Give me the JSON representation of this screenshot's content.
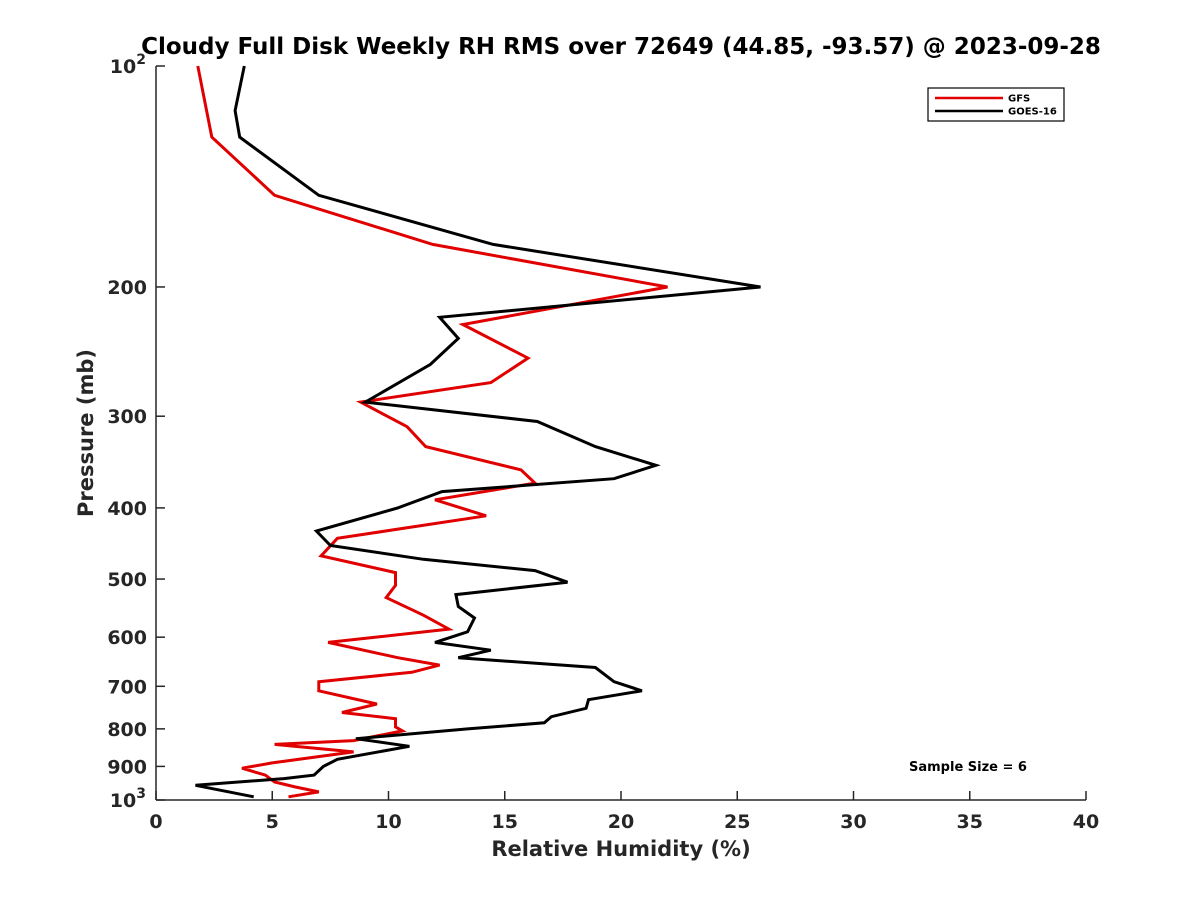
{
  "chart_data": {
    "type": "line",
    "title": "Cloudy Full Disk Weekly RH RMS over 72649 (44.85, -93.57) @ 2023-09-28",
    "xlabel": "Relative Humidity (%)",
    "ylabel": "Pressure (mb)",
    "xlim": [
      0,
      40
    ],
    "ylim": [
      100,
      1000
    ],
    "y_scale": "log",
    "y_reversed": true,
    "grid": false,
    "legend_position": "top-right",
    "x_ticks": [
      0,
      5,
      10,
      15,
      20,
      25,
      30,
      35,
      40
    ],
    "x_tick_labels": [
      "0",
      "5",
      "10",
      "15",
      "20",
      "25",
      "30",
      "35",
      "40"
    ],
    "y_ticks": [
      100,
      200,
      300,
      400,
      500,
      600,
      700,
      800,
      900,
      1000
    ],
    "y_tick_labels": [
      {
        "base": "10",
        "sup": "2"
      },
      {
        "base": "200",
        "sup": ""
      },
      {
        "base": "300",
        "sup": ""
      },
      {
        "base": "400",
        "sup": ""
      },
      {
        "base": "500",
        "sup": ""
      },
      {
        "base": "600",
        "sup": ""
      },
      {
        "base": "700",
        "sup": ""
      },
      {
        "base": "800",
        "sup": ""
      },
      {
        "base": "900",
        "sup": ""
      },
      {
        "base": "10",
        "sup": "3"
      }
    ],
    "annotation": "Sample Size = 6",
    "series": [
      {
        "name": "GFS",
        "color": "#e00000",
        "points": [
          [
            1.8,
            100
          ],
          [
            2.4,
            125
          ],
          [
            5.1,
            150
          ],
          [
            11.9,
            175
          ],
          [
            22.0,
            200
          ],
          [
            13.2,
            225
          ],
          [
            16.0,
            250
          ],
          [
            14.4,
            270
          ],
          [
            8.8,
            287
          ],
          [
            10.8,
            310
          ],
          [
            11.6,
            330
          ],
          [
            15.7,
            355
          ],
          [
            16.3,
            370
          ],
          [
            12.0,
            390
          ],
          [
            14.2,
            410
          ],
          [
            7.8,
            440
          ],
          [
            7.1,
            465
          ],
          [
            10.3,
            490
          ],
          [
            10.3,
            510
          ],
          [
            9.9,
            530
          ],
          [
            11.5,
            560
          ],
          [
            12.6,
            585
          ],
          [
            7.4,
            610
          ],
          [
            10.4,
            640
          ],
          [
            12.2,
            655
          ],
          [
            11.0,
            670
          ],
          [
            7.0,
            690
          ],
          [
            7.0,
            710
          ],
          [
            9.5,
            740
          ],
          [
            8.0,
            760
          ],
          [
            10.3,
            775
          ],
          [
            10.3,
            795
          ],
          [
            10.6,
            805
          ],
          [
            8.5,
            830
          ],
          [
            5.1,
            840
          ],
          [
            8.5,
            860
          ],
          [
            5.0,
            890
          ],
          [
            3.7,
            905
          ],
          [
            4.7,
            925
          ],
          [
            5.1,
            945
          ],
          [
            6.0,
            960
          ],
          [
            7.0,
            975
          ],
          [
            5.7,
            990
          ]
        ]
      },
      {
        "name": "GOES-16",
        "color": "#000000",
        "points": [
          [
            3.8,
            100
          ],
          [
            3.4,
            115
          ],
          [
            3.6,
            125
          ],
          [
            7.0,
            150
          ],
          [
            14.5,
            175
          ],
          [
            26.0,
            200
          ],
          [
            12.2,
            220
          ],
          [
            13.0,
            235
          ],
          [
            11.8,
            255
          ],
          [
            9.0,
            287
          ],
          [
            16.4,
            305
          ],
          [
            18.9,
            330
          ],
          [
            21.5,
            350
          ],
          [
            19.7,
            365
          ],
          [
            12.3,
            380
          ],
          [
            10.4,
            400
          ],
          [
            6.9,
            430
          ],
          [
            7.5,
            450
          ],
          [
            11.5,
            470
          ],
          [
            16.3,
            487
          ],
          [
            17.7,
            505
          ],
          [
            12.9,
            525
          ],
          [
            13.0,
            545
          ],
          [
            13.7,
            565
          ],
          [
            13.4,
            590
          ],
          [
            12.0,
            610
          ],
          [
            14.4,
            625
          ],
          [
            13.0,
            640
          ],
          [
            18.9,
            660
          ],
          [
            19.7,
            690
          ],
          [
            20.9,
            710
          ],
          [
            18.6,
            730
          ],
          [
            18.5,
            750
          ],
          [
            17.0,
            770
          ],
          [
            16.7,
            785
          ],
          [
            13.4,
            800
          ],
          [
            8.6,
            825
          ],
          [
            10.9,
            845
          ],
          [
            7.8,
            880
          ],
          [
            7.2,
            900
          ],
          [
            6.8,
            925
          ],
          [
            5.5,
            935
          ],
          [
            1.7,
            955
          ],
          [
            4.2,
            990
          ]
        ]
      }
    ]
  }
}
